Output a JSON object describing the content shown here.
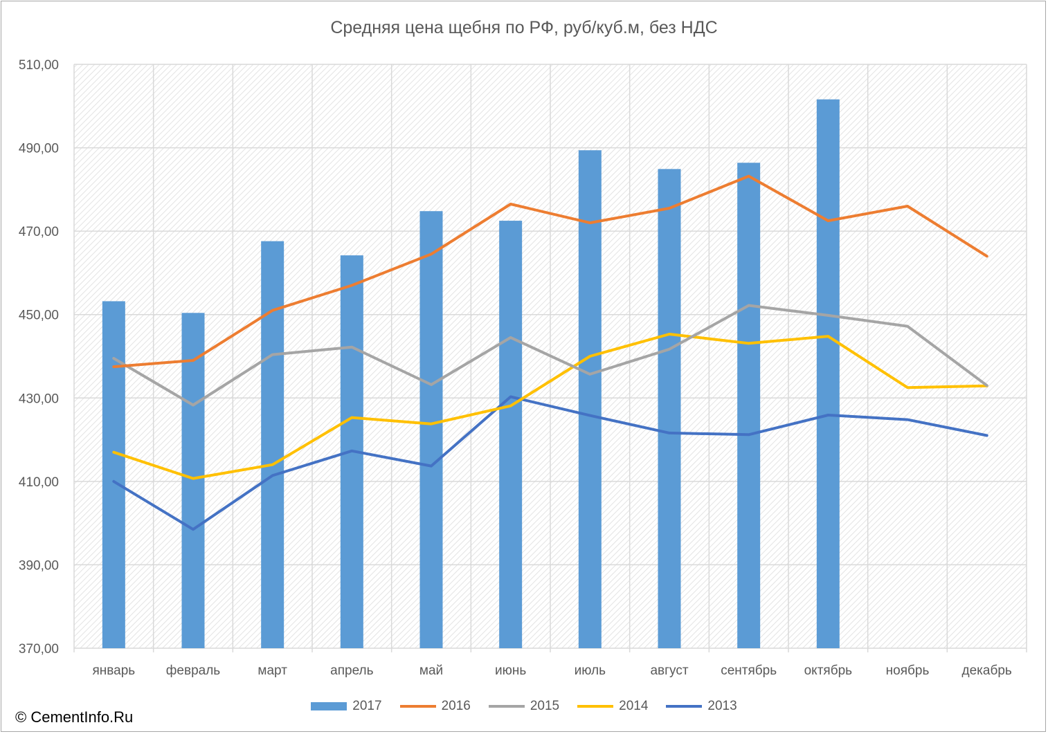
{
  "title": "Средняя цена щебня по РФ, руб/куб.м, без НДС",
  "copyright": "© CementInfo.Ru",
  "colors": {
    "2017": "#5B9BD5",
    "2016": "#ED7D31",
    "2015": "#A5A5A5",
    "2014": "#FFC000",
    "2013": "#4472C4",
    "grid": "#d9d9d9",
    "text": "#595959"
  },
  "chart_data": {
    "type": "bar+line",
    "title": "Средняя цена щебня по РФ, руб/куб.м, без НДС",
    "xlabel": "",
    "ylabel": "",
    "ylim": [
      370,
      510
    ],
    "ytick_step": 20,
    "ytick_labels": [
      "370,00",
      "390,00",
      "410,00",
      "430,00",
      "450,00",
      "470,00",
      "490,00",
      "510,00"
    ],
    "grid": true,
    "legend_position": "bottom",
    "categories": [
      "январь",
      "февраль",
      "март",
      "апрель",
      "май",
      "июнь",
      "июль",
      "август",
      "сентябрь",
      "октябрь",
      "ноябрь",
      "декабрь"
    ],
    "bar_series": [
      {
        "name": "2017",
        "values": [
          453.2,
          450.4,
          467.6,
          464.2,
          474.8,
          472.5,
          489.4,
          484.9,
          486.4,
          501.6,
          null,
          null
        ]
      }
    ],
    "line_series": [
      {
        "name": "2016",
        "values": [
          437.5,
          439.0,
          451.0,
          457.0,
          464.5,
          476.5,
          472.0,
          475.5,
          483.2,
          472.5,
          476.0,
          464.0
        ]
      },
      {
        "name": "2015",
        "values": [
          439.5,
          428.3,
          440.4,
          442.2,
          433.2,
          444.5,
          435.7,
          441.7,
          452.2,
          449.8,
          447.2,
          433.0
        ]
      },
      {
        "name": "2014",
        "values": [
          417.0,
          410.7,
          414.0,
          425.3,
          423.8,
          428.1,
          440.0,
          445.3,
          443.1,
          444.8,
          432.5,
          432.9
        ]
      },
      {
        "name": "2013",
        "values": [
          410.0,
          398.5,
          411.4,
          417.3,
          413.7,
          430.3,
          425.8,
          421.6,
          421.2,
          425.9,
          424.8,
          421.0
        ]
      }
    ]
  }
}
